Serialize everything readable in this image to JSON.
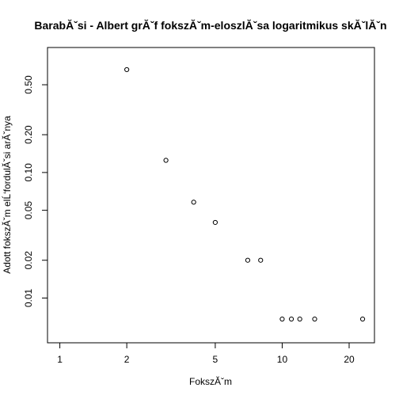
{
  "chart_data": {
    "type": "scatter",
    "title": "BarabĂˇsi - Albert grĂˇf fokszĂˇm-eloszlĂˇsa logaritmikus skĂˇlĂˇn",
    "xlabel": "FokszĂˇm",
    "ylabel": "Adott fokszĂˇm elĹ‘fordulĂˇsi arĂˇnya",
    "x_scale": "log",
    "y_scale": "log",
    "xlim": [
      0.88,
      26
    ],
    "ylim": [
      0.0044,
      0.99
    ],
    "x_ticks": [
      1,
      2,
      5,
      10,
      20
    ],
    "x_tick_labels": [
      "1",
      "2",
      "5",
      "10",
      "20"
    ],
    "y_ticks": [
      0.01,
      0.02,
      0.05,
      0.1,
      0.2,
      0.5
    ],
    "y_tick_labels": [
      "0.01",
      "0.02",
      "0.05",
      "0.10",
      "0.20",
      "0.50"
    ],
    "grid": false,
    "points": [
      {
        "x": 2,
        "y": 0.66
      },
      {
        "x": 3,
        "y": 0.125
      },
      {
        "x": 4,
        "y": 0.058
      },
      {
        "x": 5,
        "y": 0.04
      },
      {
        "x": 7,
        "y": 0.02
      },
      {
        "x": 8,
        "y": 0.02
      },
      {
        "x": 10,
        "y": 0.0068
      },
      {
        "x": 11,
        "y": 0.0068
      },
      {
        "x": 12,
        "y": 0.0068
      },
      {
        "x": 14,
        "y": 0.0068
      },
      {
        "x": 23,
        "y": 0.0068
      }
    ]
  }
}
